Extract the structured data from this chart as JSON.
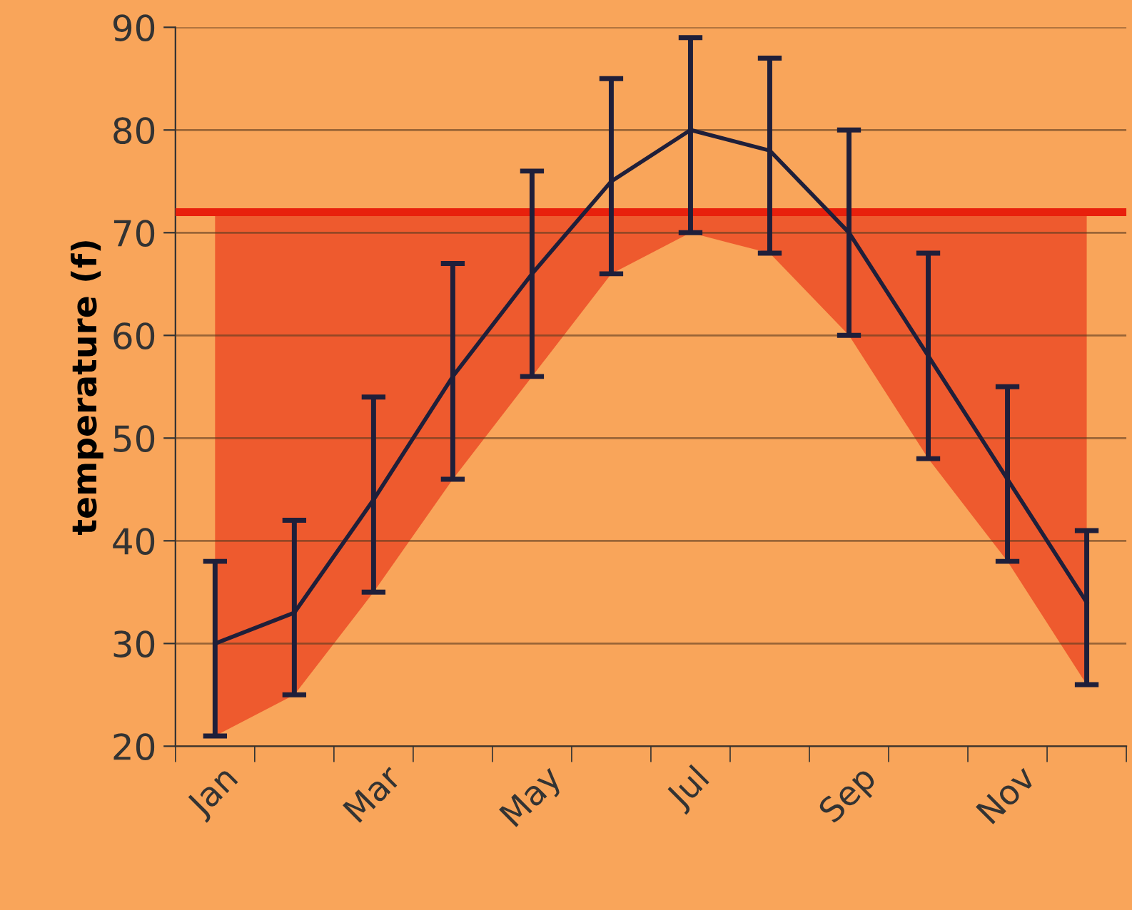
{
  "chart_data": {
    "type": "line",
    "ylabel": "temperature (f)",
    "categories": [
      "Jan",
      null,
      "Mar",
      null,
      "May",
      null,
      "Jul",
      null,
      "Sep",
      null,
      "Nov",
      null
    ],
    "series": [
      {
        "color": "#1f1f3a",
        "lower": [
          21,
          25,
          35,
          46,
          56,
          66,
          70,
          68,
          60,
          48,
          38,
          26
        ],
        "upper": [
          72,
          72,
          72,
          72,
          72,
          72,
          72,
          72,
          72,
          72,
          72,
          72
        ],
        "values": [
          30,
          33,
          44,
          56,
          66,
          75,
          80,
          78,
          70,
          58,
          46,
          34
        ],
        "errors": [
          [
            21,
            38
          ],
          [
            25,
            42
          ],
          [
            35,
            54
          ],
          [
            46,
            67
          ],
          [
            56,
            76
          ],
          [
            66,
            85
          ],
          [
            70,
            89
          ],
          [
            68,
            87
          ],
          [
            60,
            80
          ],
          [
            48,
            68
          ],
          [
            38,
            55
          ],
          [
            26,
            41
          ]
        ]
      }
    ],
    "ref_lines": [
      {
        "axis": "y",
        "value": 72,
        "color": "#e8200c"
      }
    ],
    "ylim": [
      20,
      90
    ],
    "yticks": [
      20,
      30,
      40,
      50,
      60,
      70,
      80,
      90
    ],
    "grid": "y",
    "marker": "none",
    "line_style": "solid"
  }
}
